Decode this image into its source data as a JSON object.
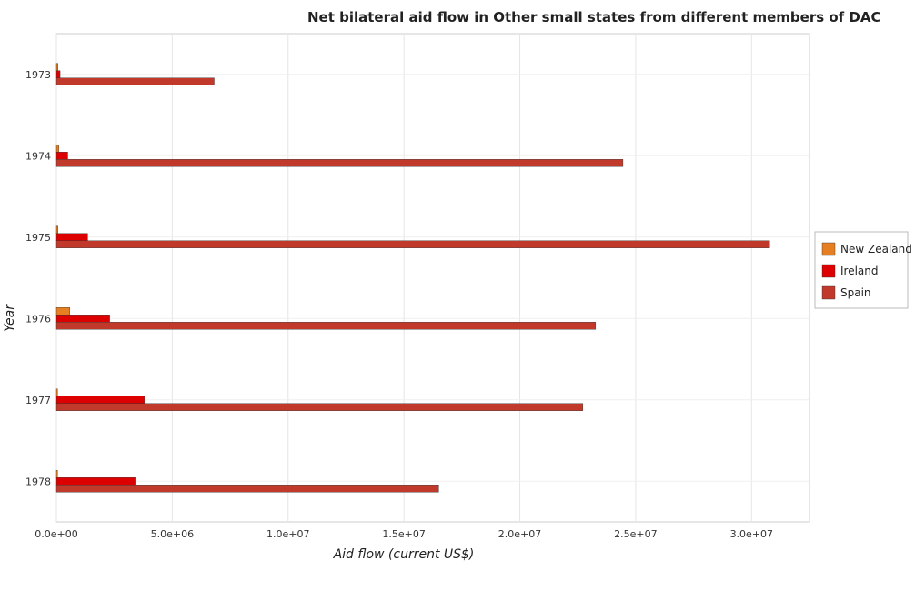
{
  "chart_data": {
    "type": "bar",
    "orientation": "horizontal",
    "title": "Net bilateral aid flow in Other small states from different members of DAC",
    "xlabel": "Aid flow (current US$)",
    "ylabel": "Year",
    "categories": [
      "1973",
      "1974",
      "1975",
      "1976",
      "1977",
      "1978"
    ],
    "series": [
      {
        "name": "New Zealand",
        "color": "#e67e22",
        "values": [
          70000,
          110000,
          70000,
          580000,
          50000,
          50000
        ]
      },
      {
        "name": "Ireland",
        "color": "#dd0000",
        "values": [
          160000,
          490000,
          1350000,
          2300000,
          3800000,
          3400000
        ]
      },
      {
        "name": "Spain",
        "color": "#c0392b",
        "values": [
          6810000,
          24450000,
          30780000,
          23270000,
          22720000,
          16500000
        ]
      }
    ],
    "xlim": [
      0,
      32500000
    ],
    "xticks": [
      0,
      5000000,
      10000000,
      15000000,
      20000000,
      25000000,
      30000000
    ],
    "xtick_labels": [
      "0.0e+00",
      "5.0e+06",
      "1.0e+07",
      "1.5e+07",
      "2.0e+07",
      "2.5e+07",
      "3.0e+07"
    ],
    "grid": true,
    "legend_position": "right"
  }
}
